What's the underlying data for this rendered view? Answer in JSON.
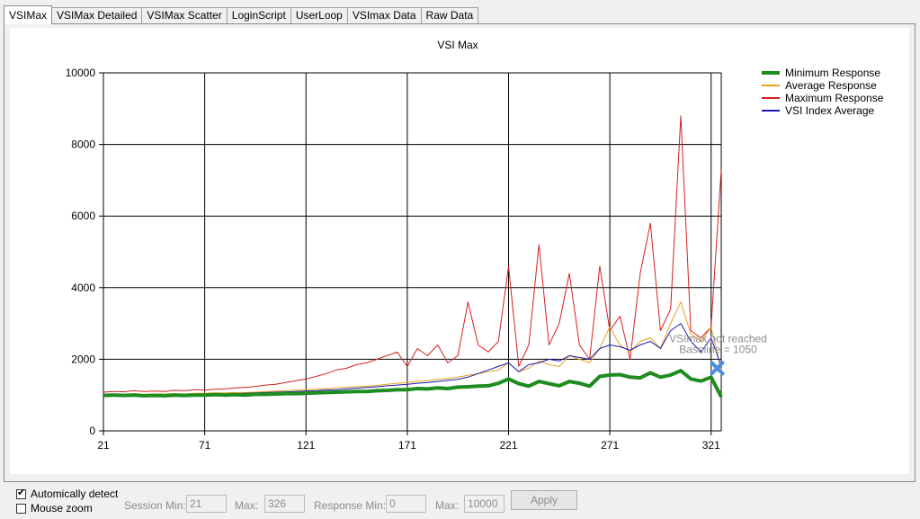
{
  "tabs": [
    {
      "label": "VSIMax",
      "active": true
    },
    {
      "label": "VSIMax Detailed"
    },
    {
      "label": "VSIMax Scatter"
    },
    {
      "label": "LoginScript"
    },
    {
      "label": "UserLoop"
    },
    {
      "label": "VSImax Data"
    },
    {
      "label": "Raw Data"
    }
  ],
  "controls": {
    "auto_detect_label": "Automically detect",
    "auto_detect_checked": true,
    "mouse_zoom_label": "Mouse zoom",
    "mouse_zoom_checked": false,
    "session_min_label": "Session Min:",
    "session_min_value": "21",
    "session_max_label": "Max:",
    "session_max_value": "326",
    "response_min_label": "Response Min:",
    "response_min_value": "0",
    "response_max_label": "Max:",
    "response_max_value": "10000",
    "apply_label": "Apply"
  },
  "chart_data": {
    "type": "line",
    "title": "VSI Max",
    "xlim": [
      21,
      326
    ],
    "ylim": [
      0,
      10000
    ],
    "xticks": [
      21,
      71,
      121,
      171,
      221,
      271,
      321
    ],
    "yticks": [
      0,
      2000,
      4000,
      6000,
      8000,
      10000
    ],
    "grid": true,
    "legend_placement": "top-right",
    "x": [
      21,
      26,
      31,
      36,
      41,
      46,
      51,
      56,
      61,
      66,
      71,
      76,
      81,
      86,
      91,
      96,
      101,
      106,
      111,
      116,
      121,
      126,
      131,
      136,
      141,
      146,
      151,
      156,
      161,
      166,
      171,
      176,
      181,
      186,
      191,
      196,
      201,
      206,
      211,
      216,
      221,
      226,
      231,
      236,
      241,
      246,
      251,
      256,
      261,
      266,
      271,
      276,
      281,
      286,
      291,
      296,
      301,
      306,
      311,
      316,
      321,
      326
    ],
    "series": [
      {
        "name": "Minimum Response",
        "color": "#1e8c1e",
        "width": 4,
        "values": [
          990,
          1000,
          990,
          1000,
          980,
          990,
          980,
          1000,
          990,
          1000,
          1000,
          1010,
          1000,
          1010,
          1000,
          1020,
          1020,
          1030,
          1040,
          1040,
          1050,
          1060,
          1070,
          1080,
          1090,
          1100,
          1100,
          1120,
          1130,
          1150,
          1150,
          1180,
          1170,
          1200,
          1180,
          1220,
          1230,
          1250,
          1260,
          1330,
          1450,
          1320,
          1250,
          1380,
          1320,
          1260,
          1380,
          1330,
          1250,
          1520,
          1560,
          1570,
          1500,
          1480,
          1620,
          1500,
          1560,
          1680,
          1450,
          1390,
          1500,
          950
        ]
      },
      {
        "name": "Average Response",
        "color": "#e8a020",
        "width": 1,
        "values": [
          1020,
          1030,
          1020,
          1040,
          1020,
          1030,
          1030,
          1040,
          1030,
          1050,
          1050,
          1060,
          1060,
          1070,
          1070,
          1080,
          1100,
          1110,
          1120,
          1140,
          1150,
          1160,
          1180,
          1200,
          1220,
          1230,
          1250,
          1270,
          1300,
          1330,
          1350,
          1380,
          1400,
          1440,
          1460,
          1500,
          1550,
          1600,
          1650,
          1700,
          1900,
          1650,
          1750,
          1950,
          1850,
          1800,
          2100,
          2000,
          1900,
          2300,
          2900,
          2400,
          2200,
          2500,
          2600,
          2300,
          3000,
          3600,
          2700,
          2500,
          2900,
          1700
        ]
      },
      {
        "name": "Maximum Response",
        "color": "#d42020",
        "width": 1,
        "values": [
          1080,
          1100,
          1090,
          1120,
          1100,
          1110,
          1100,
          1130,
          1120,
          1150,
          1140,
          1160,
          1170,
          1200,
          1210,
          1240,
          1280,
          1300,
          1350,
          1400,
          1450,
          1520,
          1600,
          1700,
          1750,
          1850,
          1900,
          2000,
          2100,
          2200,
          1800,
          2300,
          2100,
          2400,
          1900,
          2100,
          3600,
          2400,
          2200,
          2500,
          4600,
          1800,
          2400,
          5200,
          2400,
          3000,
          4400,
          2400,
          2000,
          4600,
          2800,
          3200,
          2000,
          4400,
          5800,
          2800,
          3400,
          8800,
          2800,
          2600,
          2900,
          7300
        ]
      },
      {
        "name": "VSI Index Average",
        "color": "#1a1ab4",
        "width": 1,
        "values": [
          1000,
          1010,
          1000,
          1010,
          1000,
          1010,
          1000,
          1010,
          1010,
          1020,
          1020,
          1030,
          1030,
          1040,
          1050,
          1060,
          1070,
          1080,
          1090,
          1100,
          1110,
          1120,
          1140,
          1150,
          1170,
          1190,
          1210,
          1230,
          1260,
          1280,
          1300,
          1330,
          1350,
          1380,
          1410,
          1440,
          1500,
          1600,
          1700,
          1800,
          1900,
          1650,
          1850,
          1900,
          2000,
          1950,
          2100,
          2050,
          2000,
          2300,
          2400,
          2350,
          2250,
          2400,
          2500,
          2300,
          2800,
          3000,
          2500,
          2200,
          2600,
          1800
        ]
      }
    ],
    "annotation": {
      "lines": [
        "VSImax not reached",
        "Baseline = 1050"
      ],
      "marker_x": 324,
      "marker_y": 1750,
      "marker_color": "#4a90e2"
    }
  }
}
